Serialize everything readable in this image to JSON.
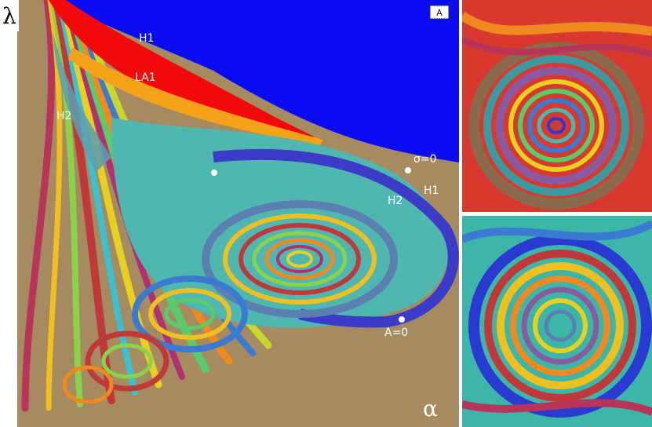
{
  "main_panel": {
    "axis_y_label": "λ",
    "axis_x_label": "α",
    "panel_tag": "A",
    "labels": {
      "h1_top": "H1",
      "la1": "LA1",
      "h2_left": "H2",
      "sigma_zero": "σ=0",
      "h1_right": "H1",
      "h2_right": "H2",
      "a_zero": "A=0"
    },
    "colors": {
      "background": "#a58b5f",
      "blue_region": "#0b0bf2",
      "red_region": "#f20a0a",
      "teal": "#4fb7b0",
      "steel": "#5a7fb0"
    }
  },
  "insets": [
    {
      "name": "top-right-inset",
      "base_color": "#d8392e"
    },
    {
      "name": "bottom-right-inset",
      "base_color": "#3cb6a8"
    }
  ]
}
